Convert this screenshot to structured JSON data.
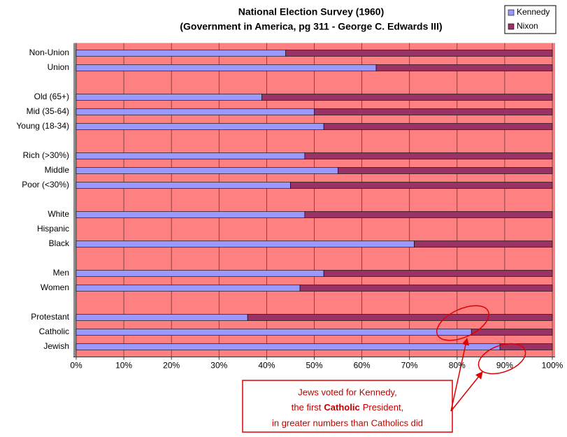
{
  "chart_data": {
    "type": "stacked_bar_horizontal",
    "title": [
      "National Election Survey (1960)",
      "(Government in America, pg 311 - George C. Edwards III)"
    ],
    "categories": [
      "Non-Union",
      "Union",
      null,
      "Old (65+)",
      "Mid (35-64)",
      "Young (18-34)",
      null,
      "Rich (>30%)",
      "Middle",
      "Poor (<30%)",
      null,
      "White",
      "Hispanic",
      "Black",
      null,
      "Men",
      "Women",
      null,
      "Protestant",
      "Catholic",
      "Jewish"
    ],
    "series": [
      {
        "name": "Kennedy",
        "color": "#9999ff",
        "values": [
          44,
          63,
          null,
          39,
          50,
          52,
          null,
          48,
          55,
          45,
          null,
          48,
          null,
          71,
          null,
          52,
          47,
          null,
          36,
          83,
          89
        ]
      },
      {
        "name": "Nixon",
        "color": "#993366",
        "values": [
          56,
          37,
          null,
          61,
          50,
          48,
          null,
          52,
          45,
          55,
          null,
          52,
          null,
          29,
          null,
          48,
          53,
          null,
          64,
          17,
          11
        ]
      }
    ],
    "xlim": [
      0,
      100
    ],
    "xticks": [
      {
        "value": 0,
        "label": "0%"
      },
      {
        "value": 10,
        "label": "10%"
      },
      {
        "value": 20,
        "label": "20%"
      },
      {
        "value": 30,
        "label": "30%"
      },
      {
        "value": 40,
        "label": "40%"
      },
      {
        "value": 50,
        "label": "50%"
      },
      {
        "value": 60,
        "label": "60%"
      },
      {
        "value": 70,
        "label": "70%"
      },
      {
        "value": 80,
        "label": "80%"
      },
      {
        "value": 90,
        "label": "90%"
      },
      {
        "value": 100,
        "label": "100%"
      }
    ],
    "grid": true,
    "legend": "top-right",
    "plot_background": "#ff8080",
    "annotation": {
      "lines": [
        {
          "before": "Jews voted for Kennedy,"
        },
        {
          "before": "the first",
          "bold": "Catholic",
          "after": "President,"
        },
        {
          "before": "in greater numbers than Catholics did"
        }
      ]
    }
  }
}
